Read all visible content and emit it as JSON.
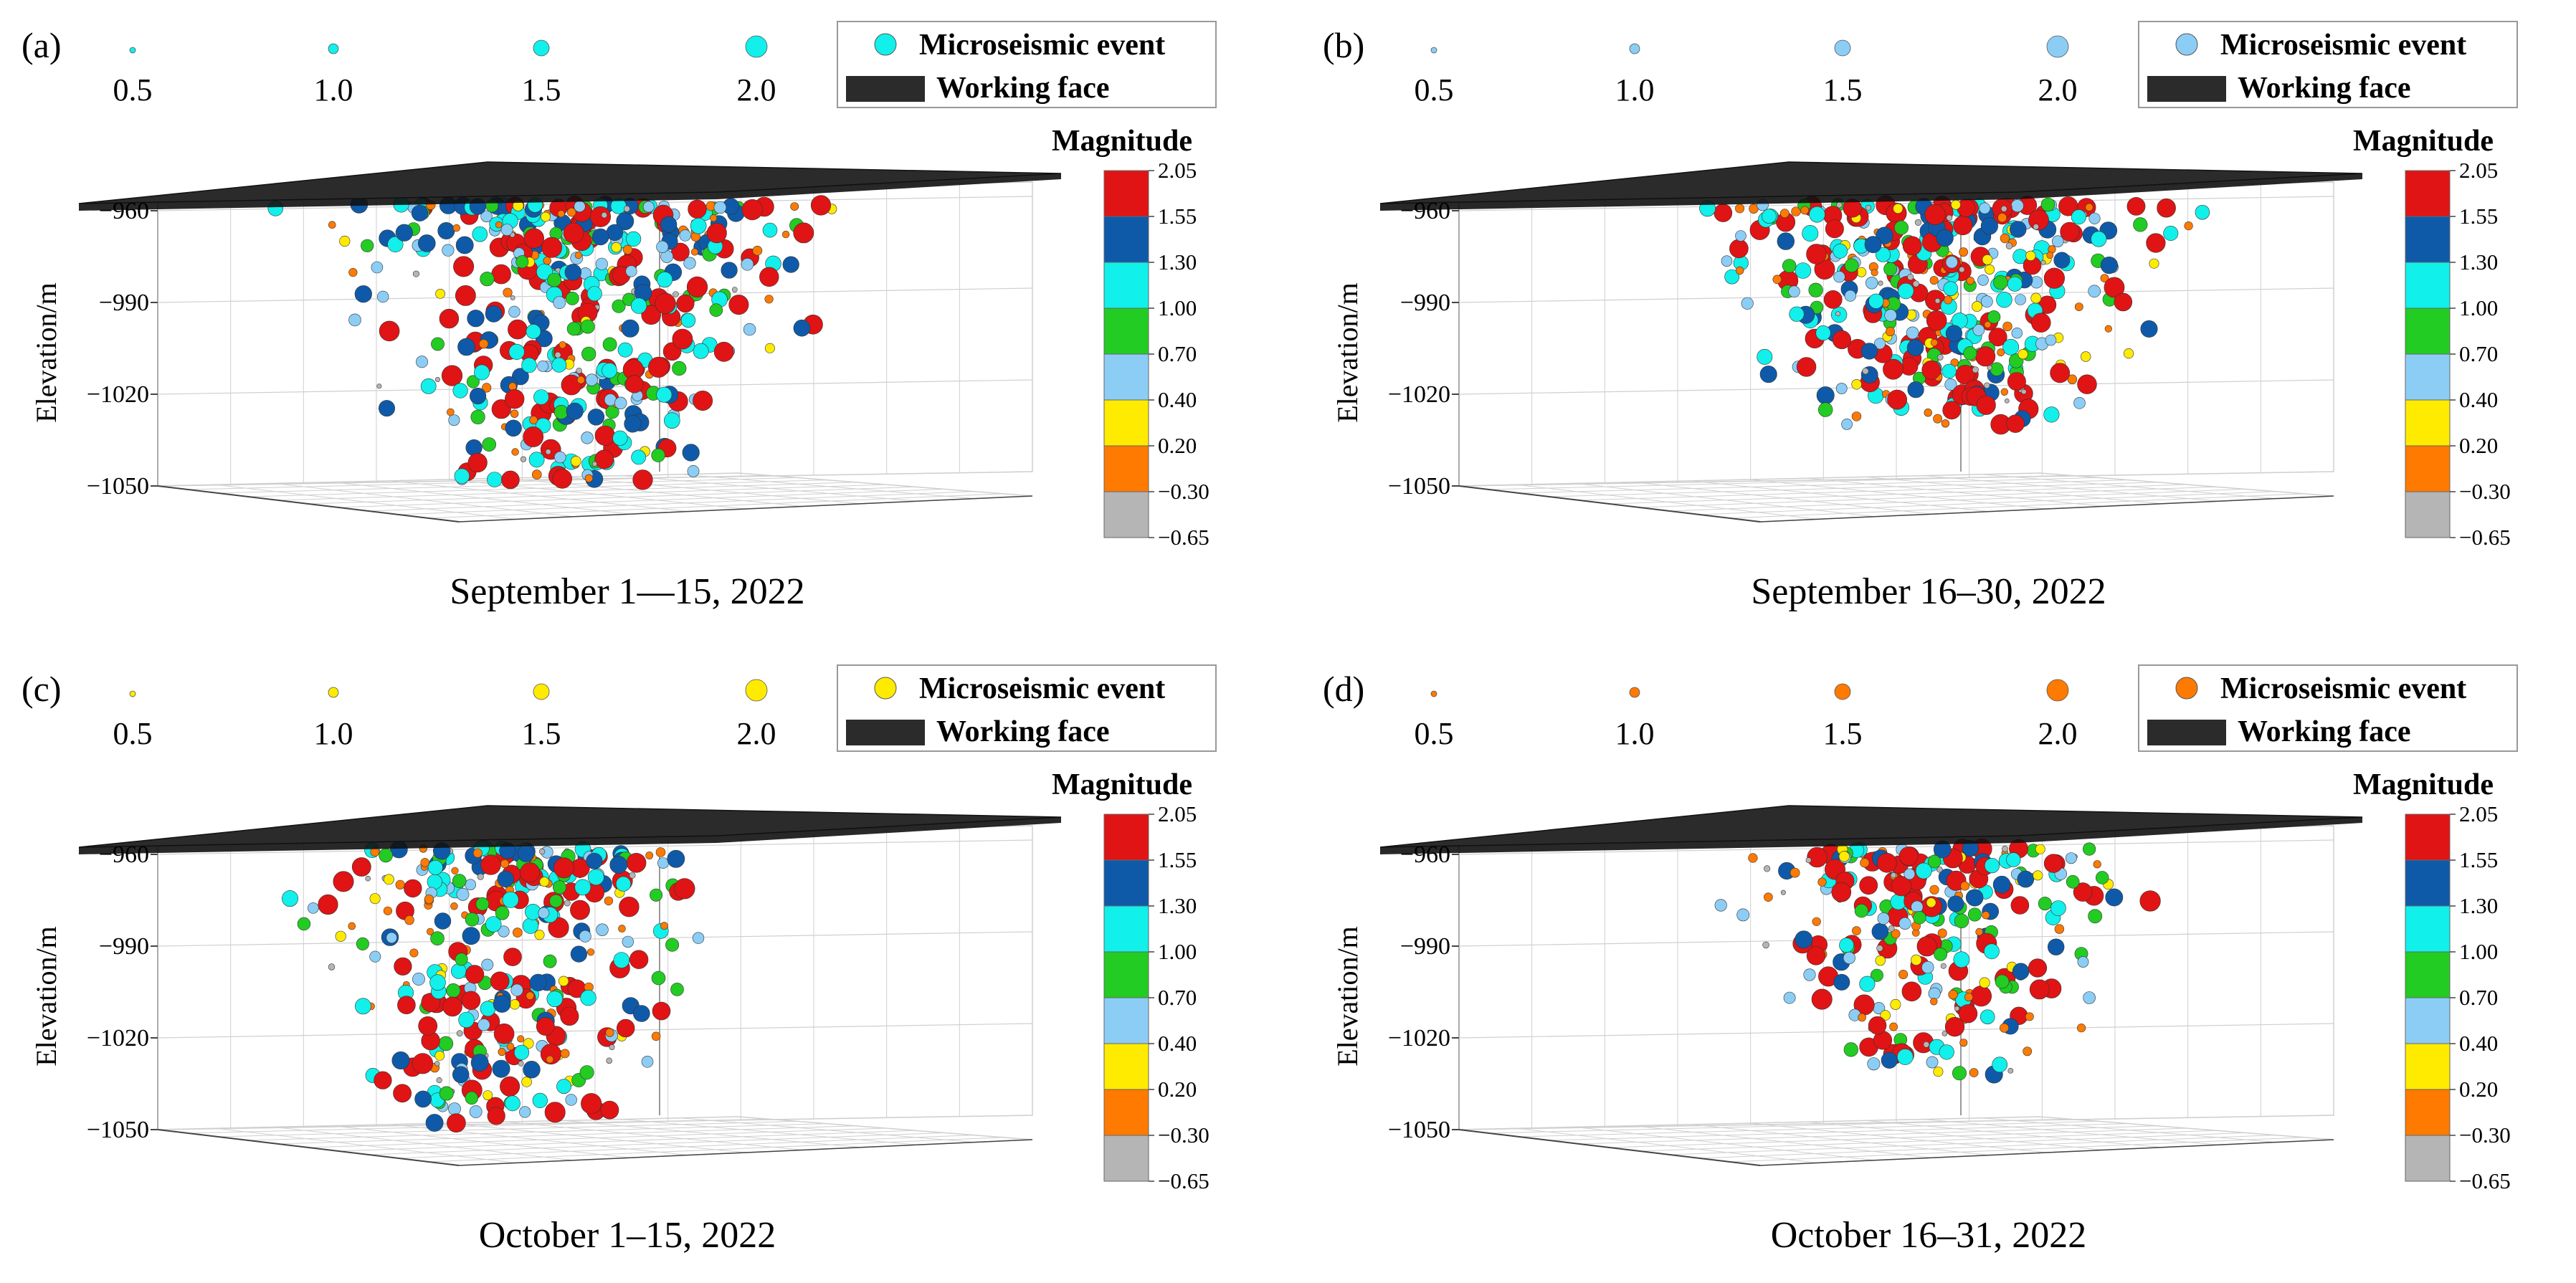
{
  "colors": {
    "bins": [
      "#b5b5b5",
      "#ff7a00",
      "#ffeb00",
      "#8ccdf5",
      "#22cc22",
      "#11f0ea",
      "#0f5aa8",
      "#e01414"
    ],
    "face": "#2b2b2b",
    "grid": "#cfcfcf",
    "axis": "#444444"
  },
  "panels": [
    {
      "label": "(a)",
      "title": "September 1—15, 2022",
      "size_legend": [
        "0.5",
        "1.0",
        "1.5",
        "2.0"
      ],
      "event_legend_label": "Microseismic event",
      "face_legend_label": "Working face",
      "legend_marker_color": "#11f0ea",
      "ylabel": "Elevation/m",
      "yticks": [
        "−960",
        "−990",
        "−1020",
        "−1050"
      ],
      "colorbar_title": "Magnitude",
      "colorbar_ticks": [
        "2.05",
        "1.55",
        "1.30",
        "1.00",
        "0.70",
        "0.40",
        "0.20",
        "−0.30",
        "−0.65"
      ],
      "chart_data": {
        "type": "scatter",
        "ylabel": "Elevation/m",
        "ylim": [
          -1050,
          -950
        ],
        "colorbar": {
          "title": "Magnitude",
          "bounds": [
            -0.65,
            -0.3,
            0.2,
            0.4,
            0.7,
            1.0,
            1.3,
            1.55,
            2.05
          ]
        },
        "series": [
          {
            "name": "Microseismic event",
            "approx_event_count": 520,
            "elevation_range": [
              -1048,
              -958
            ],
            "magnitude_range": [
              -0.65,
              2.05
            ]
          }
        ]
      }
    },
    {
      "label": "(b)",
      "title": "September 16–30, 2022",
      "size_legend": [
        "0.5",
        "1.0",
        "1.5",
        "2.0"
      ],
      "event_legend_label": "Microseismic event",
      "face_legend_label": "Working face",
      "legend_marker_color": "#8ccdf5",
      "ylabel": "Elevation/m",
      "yticks": [
        "−960",
        "−990",
        "−1020",
        "−1050"
      ],
      "colorbar_title": "Magnitude",
      "colorbar_ticks": [
        "2.05",
        "1.55",
        "1.30",
        "1.00",
        "0.70",
        "0.40",
        "0.20",
        "−0.30",
        "−0.65"
      ],
      "chart_data": {
        "type": "scatter",
        "ylabel": "Elevation/m",
        "ylim": [
          -1050,
          -950
        ],
        "colorbar": {
          "title": "Magnitude",
          "bounds": [
            -0.65,
            -0.3,
            0.2,
            0.4,
            0.7,
            1.0,
            1.3,
            1.55,
            2.05
          ]
        },
        "series": [
          {
            "name": "Microseismic event",
            "approx_event_count": 480,
            "elevation_range": [
              -1030,
              -958
            ],
            "magnitude_range": [
              -0.65,
              2.05
            ]
          }
        ]
      }
    },
    {
      "label": "(c)",
      "title": "October 1–15, 2022",
      "size_legend": [
        "0.5",
        "1.0",
        "1.5",
        "2.0"
      ],
      "event_legend_label": "Microseismic event",
      "face_legend_label": "Working face",
      "legend_marker_color": "#ffeb00",
      "ylabel": "Elevation/m",
      "yticks": [
        "−960",
        "−990",
        "−1020",
        "−1050"
      ],
      "colorbar_title": "Magnitude",
      "colorbar_ticks": [
        "2.05",
        "1.55",
        "1.30",
        "1.00",
        "0.70",
        "0.40",
        "0.20",
        "−0.30",
        "−0.65"
      ],
      "chart_data": {
        "type": "scatter",
        "ylabel": "Elevation/m",
        "ylim": [
          -1050,
          -950
        ],
        "colorbar": {
          "title": "Magnitude",
          "bounds": [
            -0.65,
            -0.3,
            0.2,
            0.4,
            0.7,
            1.0,
            1.3,
            1.55,
            2.05
          ]
        },
        "series": [
          {
            "name": "Microseismic event",
            "approx_event_count": 380,
            "elevation_range": [
              -1050,
              -958
            ],
            "magnitude_range": [
              -0.65,
              2.05
            ]
          }
        ]
      }
    },
    {
      "label": "(d)",
      "title": "October 16–31, 2022",
      "size_legend": [
        "0.5",
        "1.0",
        "1.5",
        "2.0"
      ],
      "event_legend_label": "Microseismic event",
      "face_legend_label": "Working face",
      "legend_marker_color": "#ff7a00",
      "ylabel": "Elevation/m",
      "yticks": [
        "−960",
        "−990",
        "−1020",
        "−1050"
      ],
      "colorbar_title": "Magnitude",
      "colorbar_ticks": [
        "2.05",
        "1.55",
        "1.30",
        "1.00",
        "0.70",
        "0.40",
        "0.20",
        "−0.30",
        "−0.65"
      ],
      "chart_data": {
        "type": "scatter",
        "ylabel": "Elevation/m",
        "ylim": [
          -1050,
          -950
        ],
        "colorbar": {
          "title": "Magnitude",
          "bounds": [
            -0.65,
            -0.3,
            0.2,
            0.4,
            0.7,
            1.0,
            1.3,
            1.55,
            2.05
          ]
        },
        "series": [
          {
            "name": "Microseismic event",
            "approx_event_count": 300,
            "elevation_range": [
              -1032,
              -958
            ],
            "magnitude_range": [
              -0.65,
              2.05
            ]
          }
        ]
      }
    }
  ]
}
